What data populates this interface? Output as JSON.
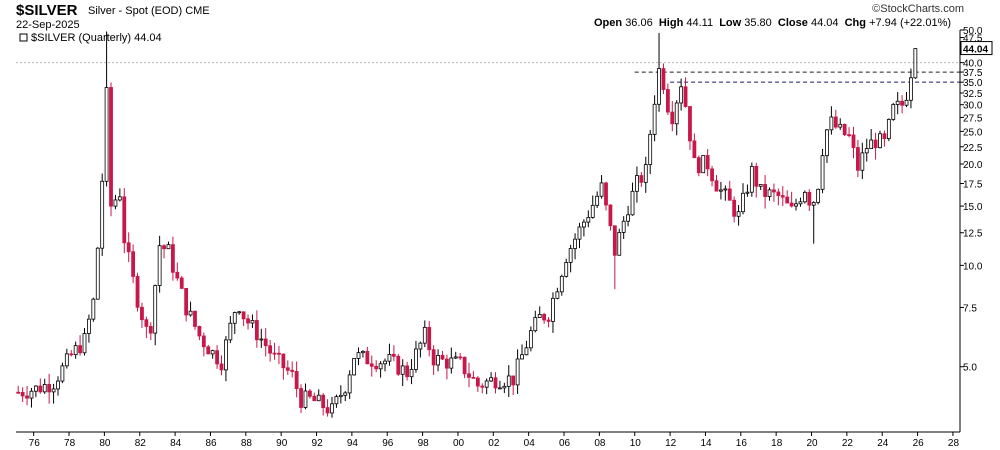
{
  "header": {
    "symbol": "$SILVER",
    "description": "Silver - Spot (EOD)",
    "exchange": "CME",
    "date": "22-Sep-2025",
    "open_label": "Open",
    "open": "36.06",
    "high_label": "High",
    "high": "44.11",
    "low_label": "Low",
    "low": "35.80",
    "close_label": "Close",
    "close": "44.04",
    "chg_label": "Chg",
    "chg": "+7.94",
    "chg_pct": "(+22.01%)",
    "credit": "©StockCharts.com"
  },
  "legend": "$SILVER (Quarterly) 44.04",
  "chart_data": {
    "type": "candlestick",
    "title": "$SILVER Silver - Spot (EOD) CME",
    "period": "Quarterly",
    "y_scale": "log",
    "y_range": [
      3.2,
      50
    ],
    "y_ticks": [
      5.0,
      7.5,
      10.0,
      12.5,
      15.0,
      17.5,
      20.0,
      22.5,
      25.0,
      27.5,
      30.0,
      32.5,
      35.0,
      37.5,
      40.0,
      47.5,
      50.0
    ],
    "y_tick_labels": [
      "5.0",
      "7.5",
      "10.0",
      "12.5",
      "15.0",
      "17.5",
      "20.0",
      "22.5",
      "25.0",
      "27.5",
      "30.0",
      "32.5",
      "35.0",
      "37.5",
      "40.0",
      "47.5",
      "50.0"
    ],
    "last_value_label": "44.04",
    "x_range": [
      1975.0,
      2028.4
    ],
    "x_ticks": [
      1976,
      1978,
      1980,
      1982,
      1984,
      1986,
      1988,
      1990,
      1992,
      1994,
      1996,
      1998,
      2000,
      2002,
      2004,
      2006,
      2008,
      2010,
      2012,
      2014,
      2016,
      2018,
      2020,
      2022,
      2024,
      2026,
      2028
    ],
    "x_tick_labels": [
      "76",
      "78",
      "80",
      "82",
      "84",
      "86",
      "88",
      "90",
      "92",
      "94",
      "96",
      "98",
      "00",
      "02",
      "04",
      "06",
      "08",
      "10",
      "12",
      "14",
      "16",
      "18",
      "20",
      "22",
      "24",
      "26",
      "28"
    ],
    "reference_lines": [
      {
        "value": 40.0,
        "style": "dotted",
        "color": "#bbbbbb"
      },
      {
        "value": 37.5,
        "style": "dashed",
        "color": "#222222",
        "from": 2010.0
      },
      {
        "value": 35.0,
        "style": "dashed",
        "color": "#1a1a6e",
        "from": 2012.0
      }
    ],
    "keypoints": [
      [
        1975.0,
        4.2
      ],
      [
        1976.0,
        4.3
      ],
      [
        1977.0,
        4.5
      ],
      [
        1978.0,
        5.4
      ],
      [
        1978.75,
        6.0
      ],
      [
        1979.3,
        8.0
      ],
      [
        1979.7,
        16.0
      ],
      [
        1980.0,
        32.0
      ],
      [
        1980.25,
        15.0
      ],
      [
        1980.75,
        16.5
      ],
      [
        1981.0,
        12.0
      ],
      [
        1981.6,
        8.5
      ],
      [
        1982.4,
        6.0
      ],
      [
        1983.0,
        11.5
      ],
      [
        1983.5,
        11.0
      ],
      [
        1984.0,
        9.0
      ],
      [
        1984.5,
        7.5
      ],
      [
        1985.3,
        6.1
      ],
      [
        1986.0,
        5.5
      ],
      [
        1986.5,
        5.2
      ],
      [
        1987.4,
        7.9
      ],
      [
        1987.8,
        7.0
      ],
      [
        1988.5,
        6.3
      ],
      [
        1989.0,
        5.8
      ],
      [
        1989.5,
        5.3
      ],
      [
        1990.0,
        5.0
      ],
      [
        1990.5,
        4.7
      ],
      [
        1991.0,
        4.0
      ],
      [
        1991.5,
        4.0
      ],
      [
        1992.0,
        3.9
      ],
      [
        1992.75,
        3.7
      ],
      [
        1993.5,
        4.4
      ],
      [
        1994.0,
        5.4
      ],
      [
        1994.5,
        5.3
      ],
      [
        1995.5,
        5.2
      ],
      [
        1996.0,
        5.2
      ],
      [
        1997.0,
        4.8
      ],
      [
        1998.0,
        6.2
      ],
      [
        1998.5,
        5.3
      ],
      [
        1999.0,
        5.2
      ],
      [
        2000.0,
        5.1
      ],
      [
        2001.0,
        4.4
      ],
      [
        2002.0,
        4.6
      ],
      [
        2003.0,
        4.6
      ],
      [
        2004.0,
        6.3
      ],
      [
        2004.5,
        7.0
      ],
      [
        2005.0,
        7.2
      ],
      [
        2006.0,
        10.7
      ],
      [
        2007.0,
        13.5
      ],
      [
        2008.0,
        17.0
      ],
      [
        2008.75,
        11.0
      ],
      [
        2009.5,
        15.0
      ],
      [
        2010.0,
        17.5
      ],
      [
        2010.5,
        19.0
      ],
      [
        2010.9,
        29.0
      ],
      [
        2011.25,
        38.0
      ],
      [
        2011.5,
        35.0
      ],
      [
        2011.75,
        30.0
      ],
      [
        2012.0,
        28.0
      ],
      [
        2012.5,
        35.0
      ],
      [
        2012.75,
        30.0
      ],
      [
        2013.25,
        20.0
      ],
      [
        2014.0,
        20.0
      ],
      [
        2014.6,
        17.0
      ],
      [
        2015.0,
        16.0
      ],
      [
        2015.75,
        14.0
      ],
      [
        2016.5,
        19.0
      ],
      [
        2017.0,
        16.5
      ],
      [
        2018.0,
        16.0
      ],
      [
        2018.75,
        14.5
      ],
      [
        2019.5,
        17.0
      ],
      [
        2019.9,
        15.0
      ],
      [
        2020.25,
        17.5
      ],
      [
        2020.6,
        24.5
      ],
      [
        2021.0,
        26.5
      ],
      [
        2021.5,
        25.0
      ],
      [
        2022.0,
        24.0
      ],
      [
        2022.5,
        19.5
      ],
      [
        2023.0,
        22.5
      ],
      [
        2023.5,
        23.5
      ],
      [
        2024.0,
        23.0
      ],
      [
        2024.5,
        29.0
      ],
      [
        2025.0,
        30.0
      ],
      [
        2025.25,
        32.5
      ],
      [
        2025.5,
        36.06
      ],
      [
        2025.75,
        44.04
      ]
    ],
    "spikes": [
      [
        1980.0,
        49.5
      ],
      [
        2011.25,
        49.0
      ],
      [
        2008.75,
        8.5
      ],
      [
        2020.0,
        11.6
      ]
    ],
    "colors": {
      "up": "#ffffff",
      "down": "#c8184a",
      "outline": "#000000"
    }
  }
}
